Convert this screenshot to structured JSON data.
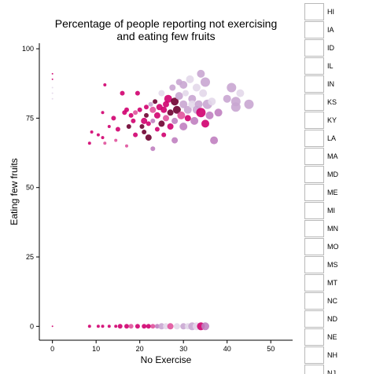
{
  "chart_data": {
    "type": "scatter",
    "title_line1": "Percentage of people reporting not exercising",
    "title_line2": "and eating few fruits",
    "xlabel": "No Exercise",
    "ylabel": "Eating few fruits",
    "xlim": [
      -3,
      55
    ],
    "ylim": [
      -5,
      102
    ],
    "x_ticks": [
      0,
      10,
      20,
      30,
      40,
      50
    ],
    "y_ticks": [
      0,
      25,
      50,
      75,
      100
    ],
    "color_scale": [
      "#e3d8ea",
      "#c9a6d2",
      "#c080c0",
      "#e0529c",
      "#d0006f",
      "#6e0030"
    ],
    "points": [
      {
        "x": 0,
        "y": 91,
        "r": 1,
        "c": 4
      },
      {
        "x": 0,
        "y": 89,
        "r": 1,
        "c": 4
      },
      {
        "x": 0,
        "y": 86,
        "r": 1,
        "c": 0
      },
      {
        "x": 0,
        "y": 84,
        "r": 1,
        "c": 0
      },
      {
        "x": 0,
        "y": 82,
        "r": 1,
        "c": 0
      },
      {
        "x": 8.5,
        "y": 66,
        "r": 2,
        "c": 4
      },
      {
        "x": 9,
        "y": 70,
        "r": 2,
        "c": 4
      },
      {
        "x": 10.5,
        "y": 69,
        "r": 2,
        "c": 4
      },
      {
        "x": 11.5,
        "y": 68,
        "r": 2,
        "c": 4
      },
      {
        "x": 12,
        "y": 66,
        "r": 2,
        "c": 3
      },
      {
        "x": 11.5,
        "y": 77,
        "r": 2,
        "c": 4
      },
      {
        "x": 12,
        "y": 87,
        "r": 2,
        "c": 4
      },
      {
        "x": 13,
        "y": 72,
        "r": 2,
        "c": 4
      },
      {
        "x": 14,
        "y": 75,
        "r": 3,
        "c": 4
      },
      {
        "x": 14.5,
        "y": 67,
        "r": 2,
        "c": 3
      },
      {
        "x": 15,
        "y": 71,
        "r": 3,
        "c": 4
      },
      {
        "x": 16,
        "y": 84,
        "r": 3,
        "c": 4
      },
      {
        "x": 16.5,
        "y": 77,
        "r": 3,
        "c": 4
      },
      {
        "x": 17,
        "y": 78,
        "r": 3,
        "c": 4
      },
      {
        "x": 17.5,
        "y": 72,
        "r": 3,
        "c": 5
      },
      {
        "x": 17,
        "y": 65,
        "r": 2,
        "c": 3
      },
      {
        "x": 18,
        "y": 76,
        "r": 3,
        "c": 4
      },
      {
        "x": 18.5,
        "y": 74,
        "r": 3,
        "c": 4
      },
      {
        "x": 19,
        "y": 77,
        "r": 3,
        "c": 3
      },
      {
        "x": 19,
        "y": 69,
        "r": 3,
        "c": 4
      },
      {
        "x": 19.5,
        "y": 84,
        "r": 3,
        "c": 4
      },
      {
        "x": 20,
        "y": 78,
        "r": 3,
        "c": 4
      },
      {
        "x": 20.5,
        "y": 72,
        "r": 3,
        "c": 5
      },
      {
        "x": 21,
        "y": 74,
        "r": 4,
        "c": 4
      },
      {
        "x": 21,
        "y": 70,
        "r": 3,
        "c": 5
      },
      {
        "x": 21.5,
        "y": 76,
        "r": 3,
        "c": 5
      },
      {
        "x": 21.5,
        "y": 79,
        "r": 3,
        "c": 4
      },
      {
        "x": 22,
        "y": 68,
        "r": 4,
        "c": 5
      },
      {
        "x": 22,
        "y": 73,
        "r": 3,
        "c": 4
      },
      {
        "x": 22.5,
        "y": 80,
        "r": 3,
        "c": 1
      },
      {
        "x": 23,
        "y": 78,
        "r": 4,
        "c": 3
      },
      {
        "x": 23,
        "y": 74,
        "r": 3,
        "c": 2
      },
      {
        "x": 23,
        "y": 64,
        "r": 3,
        "c": 2
      },
      {
        "x": 23.5,
        "y": 81,
        "r": 3,
        "c": 5
      },
      {
        "x": 24,
        "y": 76,
        "r": 4,
        "c": 4
      },
      {
        "x": 24,
        "y": 71,
        "r": 3,
        "c": 4
      },
      {
        "x": 24.5,
        "y": 79,
        "r": 4,
        "c": 4
      },
      {
        "x": 25,
        "y": 84,
        "r": 4,
        "c": 0
      },
      {
        "x": 25,
        "y": 73,
        "r": 4,
        "c": 5
      },
      {
        "x": 25.5,
        "y": 78,
        "r": 4,
        "c": 4
      },
      {
        "x": 25.5,
        "y": 69,
        "r": 3,
        "c": 4
      },
      {
        "x": 26,
        "y": 80,
        "r": 4,
        "c": 4
      },
      {
        "x": 26,
        "y": 75,
        "r": 4,
        "c": 3
      },
      {
        "x": 26.5,
        "y": 82,
        "r": 5,
        "c": 4
      },
      {
        "x": 27,
        "y": 77,
        "r": 4,
        "c": 5
      },
      {
        "x": 27,
        "y": 72,
        "r": 4,
        "c": 4
      },
      {
        "x": 27.5,
        "y": 86,
        "r": 4,
        "c": 1
      },
      {
        "x": 28,
        "y": 81,
        "r": 5,
        "c": 5
      },
      {
        "x": 28,
        "y": 74,
        "r": 4,
        "c": 2
      },
      {
        "x": 28,
        "y": 67,
        "r": 4,
        "c": 2
      },
      {
        "x": 28.5,
        "y": 78,
        "r": 5,
        "c": 5
      },
      {
        "x": 29,
        "y": 88,
        "r": 4,
        "c": 1
      },
      {
        "x": 29,
        "y": 83,
        "r": 5,
        "c": 1
      },
      {
        "x": 29.5,
        "y": 76,
        "r": 5,
        "c": 3
      },
      {
        "x": 30,
        "y": 87,
        "r": 5,
        "c": 1
      },
      {
        "x": 30,
        "y": 80,
        "r": 5,
        "c": 1
      },
      {
        "x": 30,
        "y": 72,
        "r": 5,
        "c": 2
      },
      {
        "x": 30.5,
        "y": 84,
        "r": 4,
        "c": 0
      },
      {
        "x": 31,
        "y": 78,
        "r": 5,
        "c": 1
      },
      {
        "x": 31,
        "y": 75,
        "r": 4,
        "c": 4
      },
      {
        "x": 31.5,
        "y": 89,
        "r": 5,
        "c": 0
      },
      {
        "x": 32,
        "y": 82,
        "r": 5,
        "c": 1
      },
      {
        "x": 32,
        "y": 80,
        "r": 5,
        "c": 0
      },
      {
        "x": 32.5,
        "y": 74,
        "r": 5,
        "c": 2
      },
      {
        "x": 33,
        "y": 86,
        "r": 5,
        "c": 0
      },
      {
        "x": 33,
        "y": 78,
        "r": 5,
        "c": 1
      },
      {
        "x": 33.5,
        "y": 80,
        "r": 5,
        "c": 1
      },
      {
        "x": 34,
        "y": 91,
        "r": 5,
        "c": 1
      },
      {
        "x": 34,
        "y": 77,
        "r": 6,
        "c": 4
      },
      {
        "x": 34.5,
        "y": 84,
        "r": 5,
        "c": 0
      },
      {
        "x": 35,
        "y": 88,
        "r": 6,
        "c": 1
      },
      {
        "x": 35,
        "y": 73,
        "r": 5,
        "c": 4
      },
      {
        "x": 35.5,
        "y": 80,
        "r": 6,
        "c": 1
      },
      {
        "x": 36,
        "y": 76,
        "r": 5,
        "c": 2
      },
      {
        "x": 36.5,
        "y": 81,
        "r": 5,
        "c": 0
      },
      {
        "x": 37,
        "y": 67,
        "r": 5,
        "c": 2
      },
      {
        "x": 38,
        "y": 77,
        "r": 5,
        "c": 2
      },
      {
        "x": 40,
        "y": 82,
        "r": 5,
        "c": 1
      },
      {
        "x": 41,
        "y": 86,
        "r": 6,
        "c": 1
      },
      {
        "x": 42,
        "y": 79,
        "r": 6,
        "c": 1
      },
      {
        "x": 42,
        "y": 81,
        "r": 6,
        "c": 1
      },
      {
        "x": 43,
        "y": 84,
        "r": 5,
        "c": 0
      },
      {
        "x": 45,
        "y": 80,
        "r": 6,
        "c": 1
      },
      {
        "x": 0,
        "y": 0,
        "r": 1,
        "c": 4
      },
      {
        "x": 8.5,
        "y": 0,
        "r": 2,
        "c": 4
      },
      {
        "x": 10.5,
        "y": 0,
        "r": 2,
        "c": 4
      },
      {
        "x": 11.5,
        "y": 0,
        "r": 2,
        "c": 4
      },
      {
        "x": 13,
        "y": 0,
        "r": 2,
        "c": 4
      },
      {
        "x": 14.5,
        "y": 0,
        "r": 2,
        "c": 4
      },
      {
        "x": 15.5,
        "y": 0,
        "r": 3,
        "c": 4
      },
      {
        "x": 17,
        "y": 0,
        "r": 3,
        "c": 4
      },
      {
        "x": 18,
        "y": 0,
        "r": 3,
        "c": 3
      },
      {
        "x": 19.5,
        "y": 0,
        "r": 3,
        "c": 4
      },
      {
        "x": 21,
        "y": 0,
        "r": 3,
        "c": 4
      },
      {
        "x": 22,
        "y": 0,
        "r": 3,
        "c": 4
      },
      {
        "x": 23,
        "y": 0,
        "r": 3,
        "c": 3
      },
      {
        "x": 24,
        "y": 0,
        "r": 3,
        "c": 2
      },
      {
        "x": 25,
        "y": 0,
        "r": 4,
        "c": 1
      },
      {
        "x": 26,
        "y": 0,
        "r": 4,
        "c": 0
      },
      {
        "x": 27,
        "y": 0,
        "r": 4,
        "c": 3
      },
      {
        "x": 28.5,
        "y": 0,
        "r": 4,
        "c": 0
      },
      {
        "x": 30,
        "y": 0,
        "r": 4,
        "c": 1
      },
      {
        "x": 31,
        "y": 0,
        "r": 4,
        "c": 0
      },
      {
        "x": 32,
        "y": 0,
        "r": 5,
        "c": 1
      },
      {
        "x": 33,
        "y": 0,
        "r": 5,
        "c": 0
      },
      {
        "x": 34,
        "y": 0,
        "r": 5,
        "c": 4
      },
      {
        "x": 35,
        "y": 0,
        "r": 5,
        "c": 2
      }
    ]
  },
  "legend": {
    "states": [
      "HI",
      "IA",
      "ID",
      "IL",
      "IN",
      "KS",
      "KY",
      "LA",
      "MA",
      "MD",
      "ME",
      "MI",
      "MN",
      "MO",
      "MS",
      "MT",
      "NC",
      "ND",
      "NE",
      "NH",
      "NJ"
    ]
  }
}
